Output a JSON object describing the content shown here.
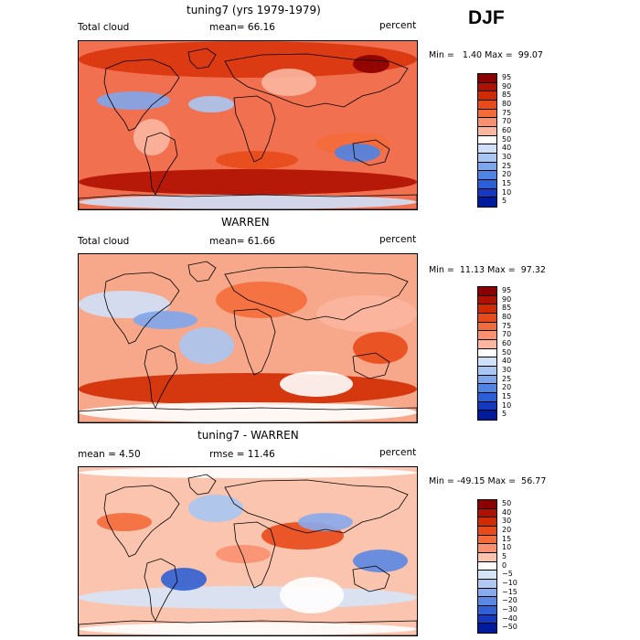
{
  "season": "DJF",
  "panels": [
    {
      "title": "tuning7 (yrs 1979-1979)",
      "left_label": "Total cloud",
      "mid_label": "mean=  66.16",
      "right_label": "percent",
      "minmax": "Min =   1.40 Max =  99.07",
      "colorbar": {
        "labels": [
          "95",
          "90",
          "85",
          "80",
          "75",
          "70",
          "60",
          "50",
          "40",
          "30",
          "25",
          "20",
          "15",
          "10",
          "5"
        ],
        "colors": [
          "#8b0000",
          "#b01000",
          "#d02a00",
          "#e84a1a",
          "#f46b3a",
          "#f99070",
          "#fbb6a0",
          "#ffffff",
          "#cfe0f8",
          "#a8c6f2",
          "#7ea6ec",
          "#4f84e4",
          "#2a5fd8",
          "#1438c0",
          "#001a9c"
        ]
      },
      "map": {
        "background": "#f07050"
      }
    },
    {
      "title": "WARREN",
      "left_label": "Total cloud",
      "mid_label": "mean=  61.66",
      "right_label": "percent",
      "minmax": "Min =  11.13 Max =  97.32",
      "colorbar": {
        "labels": [
          "95",
          "90",
          "85",
          "80",
          "75",
          "70",
          "60",
          "50",
          "40",
          "30",
          "25",
          "20",
          "15",
          "10",
          "5"
        ],
        "colors": [
          "#8b0000",
          "#b01000",
          "#d02a00",
          "#e84a1a",
          "#f46b3a",
          "#f99070",
          "#fbb6a0",
          "#ffffff",
          "#cfe0f8",
          "#a8c6f2",
          "#7ea6ec",
          "#4f84e4",
          "#2a5fd8",
          "#1438c0",
          "#001a9c"
        ]
      },
      "map": {
        "background": "#f7a88a"
      }
    },
    {
      "title": "tuning7 - WARREN",
      "left_label": "mean =   4.50",
      "mid_label": "rmse =  11.46",
      "right_label": "percent",
      "minmax": "Min = -49.15 Max =  56.77",
      "colorbar": {
        "labels": [
          "50",
          "40",
          "30",
          "20",
          "15",
          "10",
          "5",
          "0",
          "−5",
          "−10",
          "−15",
          "−20",
          "−30",
          "−40",
          "−50"
        ],
        "colors": [
          "#8b0000",
          "#b01000",
          "#d02a00",
          "#e84a1a",
          "#f46b3a",
          "#f99070",
          "#fbc2ae",
          "#ffffff",
          "#d6e4f8",
          "#b0c8f2",
          "#88aaec",
          "#5a88e2",
          "#3060d4",
          "#1438c0",
          "#001a9c"
        ]
      },
      "map": {
        "background": "#fbc4ae"
      }
    }
  ]
}
